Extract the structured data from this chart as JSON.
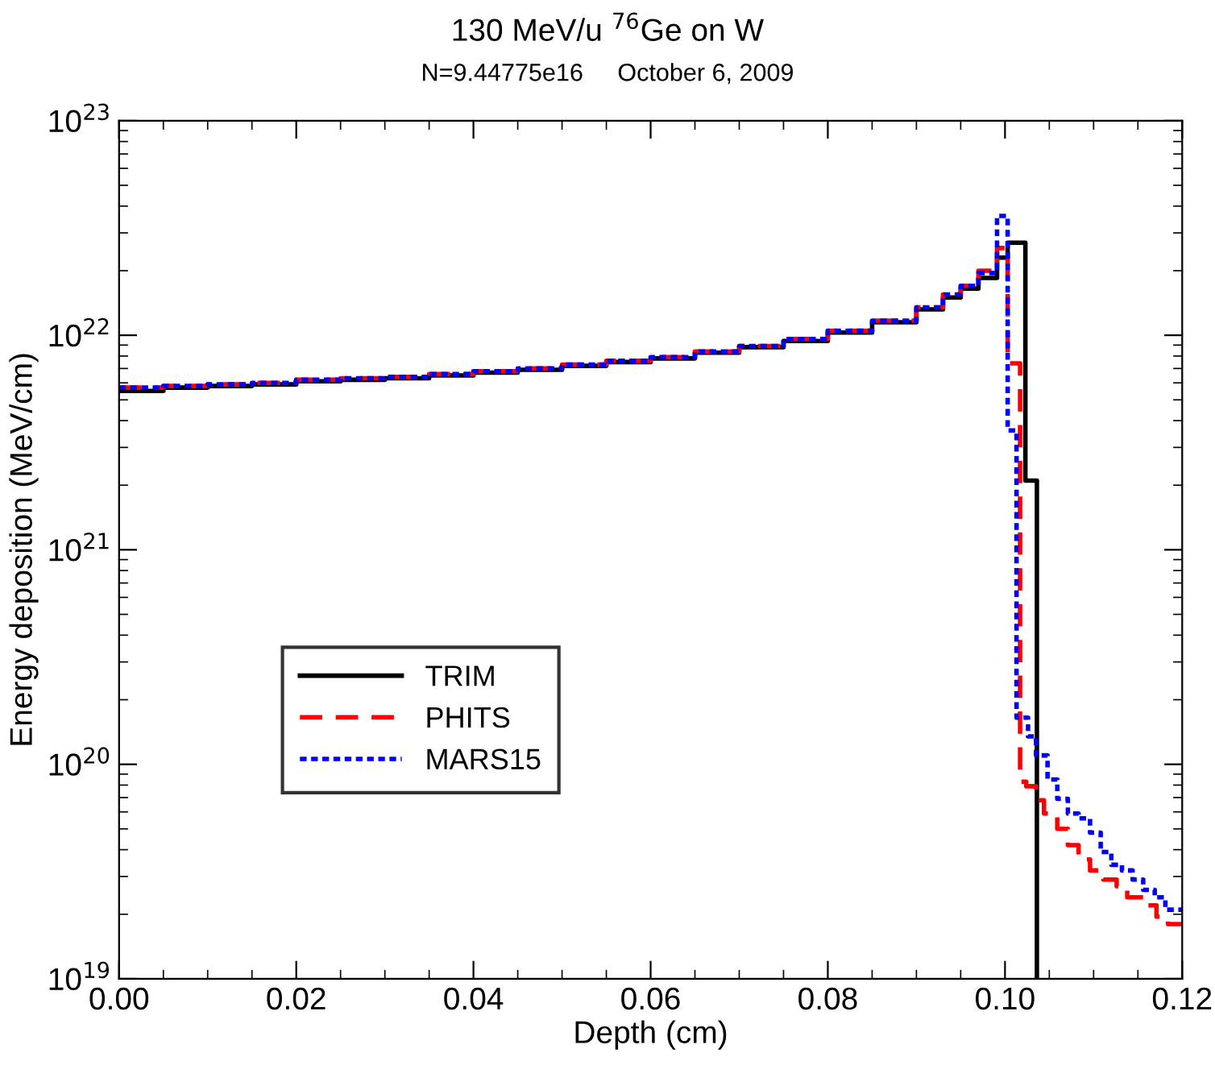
{
  "chart_data": {
    "type": "step",
    "title": "130 MeV/u $^{76}$Ge on W",
    "subtitle": "N=9.44775e16     October 6, 2009",
    "xlabel": "Depth (cm)",
    "ylabel": "Energy deposition (MeV/cm)",
    "log": "y",
    "xlim": [
      0,
      0.12
    ],
    "xticks": [
      {
        "value": 0,
        "label": "0.00"
      },
      {
        "value": 0.02,
        "label": "0.02"
      },
      {
        "value": 0.04,
        "label": "0.04"
      },
      {
        "value": 0.06,
        "label": "0.06"
      },
      {
        "value": 0.08,
        "label": "0.08"
      },
      {
        "value": 0.1,
        "label": "0.10"
      },
      {
        "value": 0.12,
        "label": "0.12"
      }
    ],
    "ylim": [
      1e+19,
      1e+23
    ],
    "yticks": [
      {
        "value": 1e+19,
        "label": "10$^{19}$"
      },
      {
        "value": 1e+20,
        "label": "10$^{20}$"
      },
      {
        "value": 1e+21,
        "label": "10$^{21}$"
      },
      {
        "value": 1e+22,
        "label": "10$^{22}$"
      },
      {
        "value": 1e+23,
        "label": "10$^{23}$"
      }
    ],
    "grid": false,
    "legend": "bottom left",
    "marker": "none",
    "series": [
      {
        "name": "TRIM",
        "color": "#000000",
        "line_style": "solid",
        "x": [
          0,
          0.005,
          0.01,
          0.015,
          0.02,
          0.025,
          0.03,
          0.035,
          0.04,
          0.045,
          0.05,
          0.055,
          0.06,
          0.065,
          0.07,
          0.075,
          0.08,
          0.085,
          0.09,
          0.093,
          0.095,
          0.097,
          0.0991,
          0.1003,
          0.1023,
          0.1036
        ],
        "values": [
          5.5e+21,
          5.7e+21,
          5.8e+21,
          5.9e+21,
          6.1e+21,
          6.2e+21,
          6.3e+21,
          6.5e+21,
          6.7e+21,
          6.9e+21,
          7.2e+21,
          7.5e+21,
          7.8e+21,
          8.3e+21,
          8.8e+21,
          9.4e+21,
          1.03e+22,
          1.15e+22,
          1.32e+22,
          1.5e+22,
          1.65e+22,
          1.85e+22,
          2.3e+22,
          2.7e+22,
          2.1e+21,
          1e+19
        ]
      },
      {
        "name": "PHITS",
        "color": "#ff0000",
        "line_style": "dashed",
        "x": [
          0,
          0.005,
          0.01,
          0.015,
          0.02,
          0.025,
          0.03,
          0.035,
          0.04,
          0.045,
          0.05,
          0.055,
          0.06,
          0.065,
          0.07,
          0.075,
          0.08,
          0.085,
          0.09,
          0.093,
          0.095,
          0.097,
          0.0991,
          0.1003,
          0.1017,
          0.1024,
          0.1035,
          0.1044,
          0.1059,
          0.1071,
          0.1083,
          0.1096,
          0.1111,
          0.1126,
          0.1138,
          0.1156,
          0.1171,
          0.1184,
          0.12
        ],
        "values": [
          5.7e+21,
          5.8e+21,
          5.9e+21,
          6e+21,
          6.2e+21,
          6.3e+21,
          6.4e+21,
          6.6e+21,
          6.8e+21,
          7e+21,
          7.3e+21,
          7.6e+21,
          7.9e+21,
          8.4e+21,
          8.9e+21,
          9.6e+21,
          1.05e+22,
          1.17e+22,
          1.35e+22,
          1.55e+22,
          1.7e+22,
          2e+22,
          2.55e+22,
          7.4e+21,
          8.3e+19,
          7.9e+19,
          6.8e+19,
          5.9e+19,
          5e+19,
          4.2e+19,
          3.6e+19,
          3.2e+19,
          2.9e+19,
          2.7e+19,
          2.4e+19,
          2.2e+19,
          1.95e+19,
          1.8e+19,
          1.8e+19
        ]
      },
      {
        "name": "MARS15",
        "color": "#0000ff",
        "line_style": "dotted",
        "x": [
          0,
          0.005,
          0.01,
          0.015,
          0.02,
          0.025,
          0.03,
          0.035,
          0.04,
          0.045,
          0.05,
          0.055,
          0.06,
          0.065,
          0.07,
          0.075,
          0.08,
          0.085,
          0.09,
          0.093,
          0.095,
          0.097,
          0.0991,
          0.1003,
          0.1013,
          0.1026,
          0.1035,
          0.1048,
          0.1059,
          0.1071,
          0.1083,
          0.1096,
          0.1108,
          0.112,
          0.1132,
          0.1144,
          0.1156,
          0.1169,
          0.1181,
          0.12
        ],
        "values": [
          5.7e+21,
          5.8e+21,
          5.9e+21,
          6e+21,
          6.2e+21,
          6.3e+21,
          6.4e+21,
          6.6e+21,
          6.8e+21,
          7e+21,
          7.3e+21,
          7.6e+21,
          7.9e+21,
          8.4e+21,
          8.9e+21,
          9.6e+21,
          1.05e+22,
          1.17e+22,
          1.35e+22,
          1.55e+22,
          1.7e+22,
          1.95e+22,
          3.6e+22,
          3.6e+21,
          1.65e+20,
          1.35e+20,
          1.1e+20,
          8.5e+19,
          6.9e+19,
          5.9e+19,
          5.6e+19,
          4.8e+19,
          3.9e+19,
          3.4e+19,
          3.2e+19,
          2.9e+19,
          2.6e+19,
          2.4e+19,
          2.1e+19,
          2.1e+19
        ]
      }
    ]
  }
}
